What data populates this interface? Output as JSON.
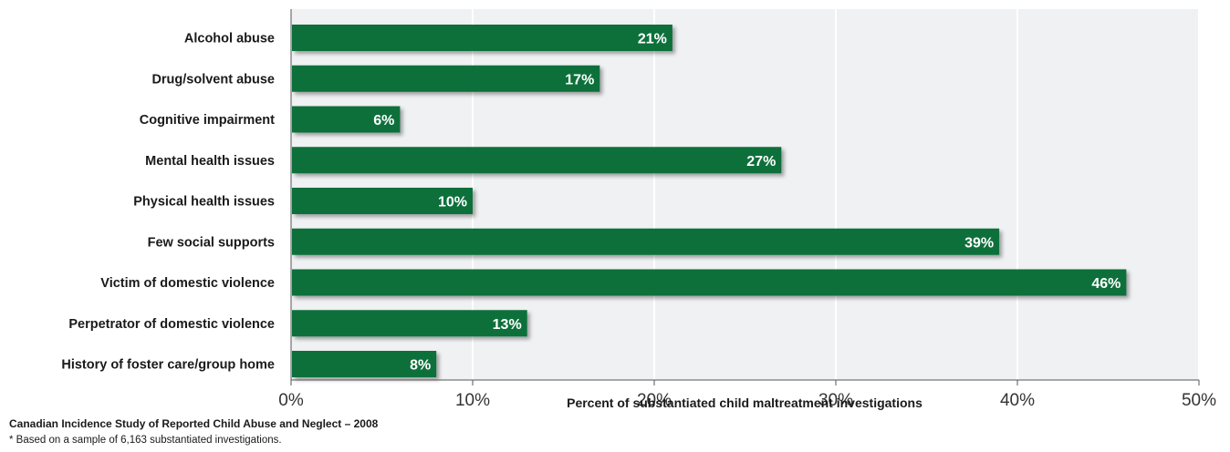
{
  "chart_data": {
    "type": "bar",
    "orientation": "horizontal",
    "categories": [
      "Alcohol abuse",
      "Drug/solvent abuse",
      "Cognitive impairment",
      "Mental health issues",
      "Physical health issues",
      "Few social supports",
      "Victim of domestic violence",
      "Perpetrator of domestic violence",
      "History of foster care/group home"
    ],
    "values": [
      21,
      17,
      6,
      27,
      10,
      39,
      46,
      13,
      8
    ],
    "value_labels": [
      "21%",
      "17%",
      "6%",
      "27%",
      "10%",
      "39%",
      "46%",
      "13%",
      "8%"
    ],
    "xlabel": "Percent of substantiated child maltreatment investigations",
    "xlim": [
      0,
      50
    ],
    "xticks": [
      0,
      10,
      20,
      30,
      40,
      50
    ],
    "xtick_labels": [
      "0%",
      "10%",
      "20%",
      "30%",
      "40%",
      "50%"
    ],
    "grid": true,
    "colors": {
      "bar": "#0b6f3b",
      "plot_background": "#f0f1f3",
      "grid": "#ffffff"
    }
  },
  "footer": {
    "source": "Canadian Incidence Study of Reported Child Abuse and Neglect – 2008",
    "note": "*  Based on a sample of 6,163 substantiated investigations."
  }
}
